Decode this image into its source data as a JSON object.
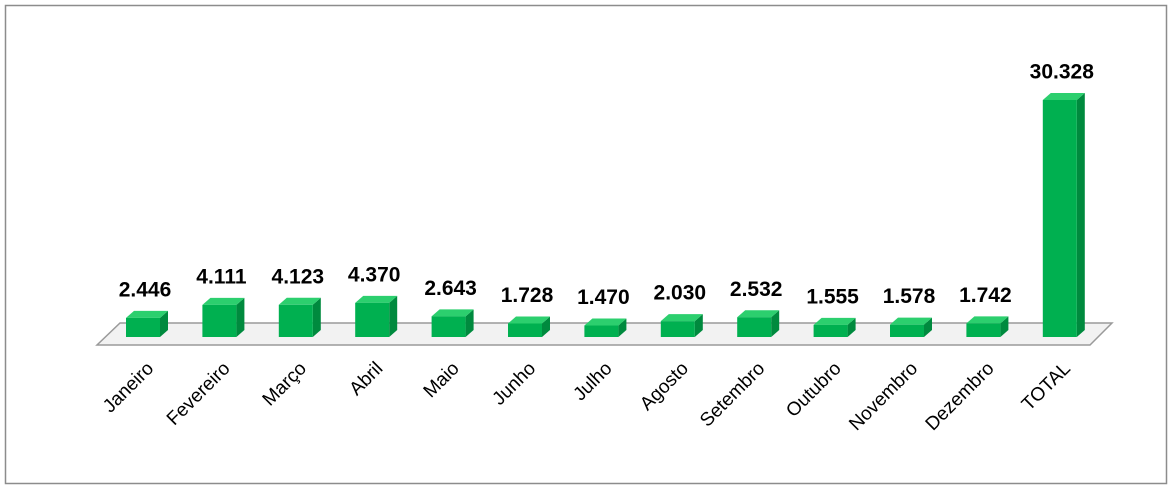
{
  "chart_data": {
    "type": "bar3d",
    "categories": [
      "Janeiro",
      "Fevereiro",
      "Março",
      "Abril",
      "Maio",
      "Junho",
      "Julho",
      "Agosto",
      "Setembro",
      "Outubro",
      "Novembro",
      "Dezembro",
      "TOTAL"
    ],
    "values": [
      2446,
      4111,
      4123,
      4370,
      2643,
      1728,
      1470,
      2030,
      2532,
      1555,
      1578,
      1742,
      30328
    ],
    "value_labels": [
      "2.446",
      "4.111",
      "4.123",
      "4.370",
      "2.643",
      "1.728",
      "1.470",
      "2.030",
      "2.532",
      "1.555",
      "1.578",
      "1.742",
      "30.328"
    ],
    "color": "#00b050"
  }
}
